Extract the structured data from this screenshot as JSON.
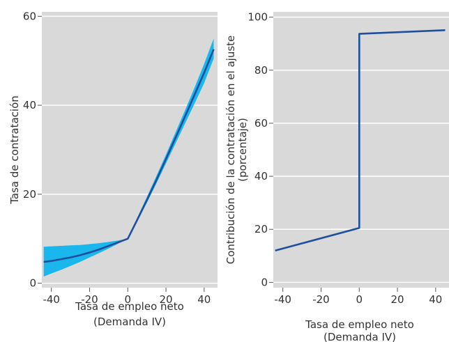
{
  "chart_data": [
    {
      "type": "line",
      "title": "",
      "xlabel_lines": [
        "Tasa de empleo neto",
        "(Demanda IV)"
      ],
      "ylabel": "Tasa de contratación",
      "xlim": [
        -45,
        47
      ],
      "ylim": [
        -1,
        61
      ],
      "xticks": [
        -40,
        -20,
        0,
        20,
        40
      ],
      "yticks": [
        0,
        20,
        40,
        60
      ],
      "xtick_labels": [
        "-40",
        "-20",
        "0",
        "20",
        "40"
      ],
      "ytick_labels": [
        "0",
        "20",
        "40",
        "60"
      ],
      "grid": true,
      "background": "#d9d9d9",
      "series": [
        {
          "style": "line",
          "color": "#1f4e9c",
          "x": [
            -44,
            -40,
            -35,
            -30,
            -25,
            -20,
            -15,
            -10,
            -5,
            0,
            5,
            10,
            15,
            20,
            25,
            30,
            35,
            40,
            45
          ],
          "y": [
            4.8,
            5.0,
            5.4,
            5.8,
            6.3,
            6.9,
            7.6,
            8.4,
            9.2,
            10.0,
            14.3,
            18.7,
            23.2,
            27.9,
            32.7,
            37.5,
            42.4,
            47.3,
            52.6
          ]
        },
        {
          "style": "band",
          "color": "#1ab6ee",
          "x": [
            -44,
            -40,
            -35,
            -30,
            -25,
            -20,
            -15,
            -10,
            -5,
            0,
            5,
            10,
            15,
            20,
            25,
            30,
            35,
            40,
            45
          ],
          "lower": [
            1.5,
            2.2,
            3.0,
            3.9,
            4.8,
            5.8,
            6.8,
            7.8,
            8.9,
            10.0,
            13.9,
            18.1,
            22.4,
            26.9,
            31.4,
            35.9,
            40.4,
            45.0,
            50.5
          ],
          "upper": [
            8.2,
            8.3,
            8.4,
            8.5,
            8.6,
            8.8,
            9.0,
            9.3,
            9.6,
            10.0,
            14.8,
            19.4,
            24.1,
            28.9,
            33.9,
            38.9,
            44.0,
            49.3,
            55.0
          ]
        }
      ]
    },
    {
      "type": "line",
      "title": "",
      "xlabel_lines": [
        "Tasa de empleo neto",
        "(Demanda IV)"
      ],
      "ylabel_lines": [
        "Contribución de la contratación en el ajuste",
        "(porcentaje)"
      ],
      "xlim": [
        -45,
        47
      ],
      "ylim": [
        -2,
        102
      ],
      "xticks": [
        -40,
        -20,
        0,
        20,
        40
      ],
      "yticks": [
        0,
        20,
        40,
        60,
        80,
        100
      ],
      "xtick_labels": [
        "-40",
        "-20",
        "0",
        "20",
        "40"
      ],
      "ytick_labels": [
        "0",
        "20",
        "40",
        "60",
        "80",
        "100"
      ],
      "grid": true,
      "background": "#d9d9d9",
      "series": [
        {
          "style": "line",
          "color": "#1f4e9c",
          "x": [
            -44,
            0,
            0,
            45
          ],
          "y": [
            12.0,
            20.5,
            93.7,
            95.1
          ]
        }
      ]
    }
  ]
}
